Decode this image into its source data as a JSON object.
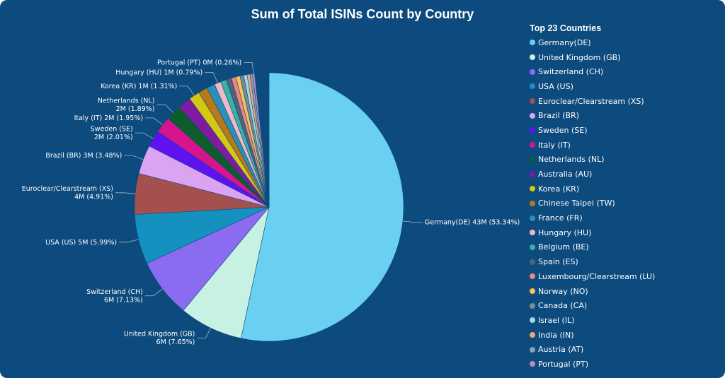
{
  "chart_data": {
    "type": "pie",
    "title": "Sum of Total ISINs Count by Country",
    "legend_title": "Top 23 Countries",
    "legend_position": "right",
    "series": [
      {
        "name": "Germany(DE)",
        "percent": 53.34,
        "color": "#6ad0f1",
        "label": "Germany(DE) 43M (53.34%)"
      },
      {
        "name": "United Kingdom (GB)",
        "percent": 7.65,
        "color": "#c6f1e3",
        "label": "United Kingdom (GB)\n6M (7.65%)"
      },
      {
        "name": "Switzerland (CH)",
        "percent": 7.13,
        "color": "#8b6cf0",
        "label": "Switzerland (CH)\n6M (7.13%)"
      },
      {
        "name": "USA (US)",
        "percent": 5.99,
        "color": "#1591bf",
        "label": "USA (US) 5M (5.99%)"
      },
      {
        "name": "Euroclear/Clearstream (XS)",
        "percent": 4.91,
        "color": "#a3504e",
        "label": "Euroclear/Clearstream (XS)\n4M (4.91%)"
      },
      {
        "name": "Brazil (BR)",
        "percent": 3.48,
        "color": "#dba4f2",
        "label": "Brazil (BR) 3M (3.48%)"
      },
      {
        "name": "Sweden (SE)",
        "percent": 2.01,
        "color": "#5f12f0",
        "label": "Sweden (SE)\n2M (2.01%)"
      },
      {
        "name": "Italy (IT)",
        "percent": 1.95,
        "color": "#d8148c",
        "label": "Italy (IT) 2M (1.95%)"
      },
      {
        "name": "Netherlands (NL)",
        "percent": 1.89,
        "color": "#0e5b2b",
        "label": "Netherlands (NL)\n2M (1.89%)"
      },
      {
        "name": "Australia (AU)",
        "percent": 1.6,
        "color": "#7e1ba1",
        "label": ""
      },
      {
        "name": "Korea (KR)",
        "percent": 1.31,
        "color": "#d6c615",
        "label": "Korea (KR) 1M (1.31%)"
      },
      {
        "name": "Chinese Taipei (TW)",
        "percent": 1.1,
        "color": "#b87a18",
        "label": ""
      },
      {
        "name": "France (FR)",
        "percent": 1.0,
        "color": "#2d8fb5",
        "label": ""
      },
      {
        "name": "Hungary (HU)",
        "percent": 0.79,
        "color": "#f0b8c6",
        "label": "Hungary (HU) 1M (0.79%)"
      },
      {
        "name": "Belgium (BE)",
        "percent": 0.7,
        "color": "#38b2a8",
        "label": ""
      },
      {
        "name": "Spain (ES)",
        "percent": 0.62,
        "color": "#4f6474",
        "label": ""
      },
      {
        "name": "Luxembourg/Clearstream (LU)",
        "percent": 0.56,
        "color": "#ee8580",
        "label": ""
      },
      {
        "name": "Norway (NO)",
        "percent": 0.5,
        "color": "#f2c65a",
        "label": ""
      },
      {
        "name": "Canada (CA)",
        "percent": 0.45,
        "color": "#7d8b8e",
        "label": ""
      },
      {
        "name": "Israel (IL)",
        "percent": 0.4,
        "color": "#9fd8ea",
        "label": ""
      },
      {
        "name": "India (IN)",
        "percent": 0.35,
        "color": "#f0a57c",
        "label": ""
      },
      {
        "name": "Austria (AT)",
        "percent": 0.3,
        "color": "#8aa0b6",
        "label": ""
      },
      {
        "name": "Portugal (PT)",
        "percent": 0.26,
        "color": "#b68bc2",
        "label": "Portugal (PT) 0M (0.26%)"
      }
    ],
    "others_colors": [
      "#e5a860",
      "#4dc0b0",
      "#e07070",
      "#6080a0",
      "#d0d060",
      "#a070c0",
      "#70b0e0",
      "#c06040",
      "#50a070",
      "#d090b0",
      "#8070d0",
      "#60c0c0"
    ]
  }
}
